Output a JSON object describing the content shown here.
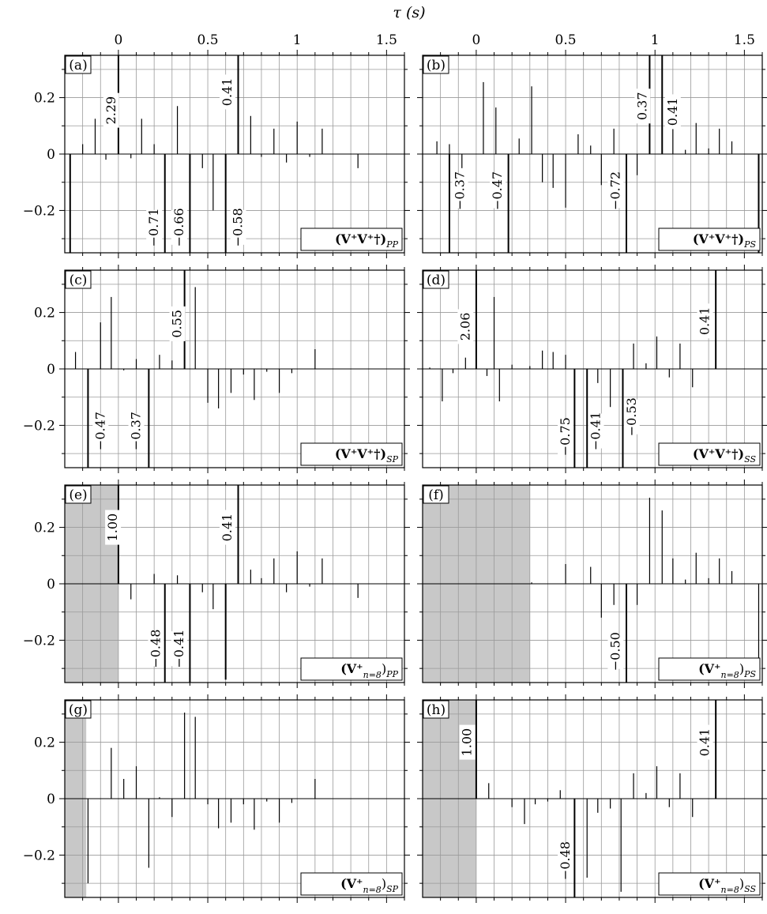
{
  "figure": {
    "xlabel": "τ (s)",
    "x_ticks": [
      0,
      0.5,
      1,
      1.5
    ],
    "x_tick_labels": [
      "0",
      "0.5",
      "1",
      "1.5"
    ],
    "y_ticks": [
      -0.2,
      0,
      0.2
    ],
    "y_tick_labels": [
      "−0.2",
      "0",
      "0.2"
    ]
  },
  "chart_data": [
    {
      "type": "bar",
      "panel": "(a)",
      "legend": "(V⁺V⁺†)PP",
      "xlim": [
        -0.3,
        1.6
      ],
      "ylim": [
        -0.35,
        0.35
      ],
      "grid": true,
      "legend_position": "bottom-right",
      "shade": null,
      "spikes": [
        {
          "x": -0.27,
          "y": -0.35
        },
        {
          "x": -0.2,
          "y": 0.035
        },
        {
          "x": -0.13,
          "y": 0.125
        },
        {
          "x": -0.07,
          "y": -0.02
        },
        {
          "x": 0.0,
          "y": 0.35
        },
        {
          "x": 0.07,
          "y": -0.015
        },
        {
          "x": 0.13,
          "y": 0.125
        },
        {
          "x": 0.2,
          "y": 0.035
        },
        {
          "x": 0.26,
          "y": -0.35
        },
        {
          "x": 0.33,
          "y": 0.17
        },
        {
          "x": 0.4,
          "y": -0.35
        },
        {
          "x": 0.47,
          "y": -0.05
        },
        {
          "x": 0.53,
          "y": -0.2
        },
        {
          "x": 0.6,
          "y": -0.35
        },
        {
          "x": 0.67,
          "y": 0.35
        },
        {
          "x": 0.74,
          "y": 0.135
        },
        {
          "x": 0.8,
          "y": -0.01
        },
        {
          "x": 0.87,
          "y": 0.09
        },
        {
          "x": 0.94,
          "y": -0.03
        },
        {
          "x": 1.0,
          "y": 0.115
        },
        {
          "x": 1.07,
          "y": -0.01
        },
        {
          "x": 1.14,
          "y": 0.09
        },
        {
          "x": 1.34,
          "y": -0.05
        }
      ],
      "labels": [
        {
          "text": "2.29",
          "x": -0.04,
          "y": 0.155,
          "align": "center"
        },
        {
          "text": "0.41",
          "x": 0.61,
          "y": 0.22,
          "align": "center"
        },
        {
          "text": "−0.71",
          "x": 0.2,
          "y": -0.26,
          "align": "center"
        },
        {
          "text": "−0.66",
          "x": 0.34,
          "y": -0.26,
          "align": "center"
        },
        {
          "text": "−0.58",
          "x": 0.67,
          "y": -0.26,
          "align": "center"
        }
      ]
    },
    {
      "type": "bar",
      "panel": "(b)",
      "legend": "(V⁺V⁺†)PS",
      "xlim": [
        -0.3,
        1.6
      ],
      "ylim": [
        -0.35,
        0.35
      ],
      "grid": true,
      "legend_position": "bottom-right",
      "shade": null,
      "spikes": [
        {
          "x": -0.22,
          "y": 0.045
        },
        {
          "x": -0.15,
          "y": 0.035
        },
        {
          "x": -0.15,
          "y": -0.35
        },
        {
          "x": -0.08,
          "y": -0.05
        },
        {
          "x": 0.04,
          "y": 0.255
        },
        {
          "x": 0.11,
          "y": 0.165
        },
        {
          "x": 0.18,
          "y": -0.35
        },
        {
          "x": 0.24,
          "y": 0.055
        },
        {
          "x": 0.31,
          "y": 0.24
        },
        {
          "x": 0.37,
          "y": -0.1
        },
        {
          "x": 0.43,
          "y": -0.12
        },
        {
          "x": 0.5,
          "y": -0.19
        },
        {
          "x": 0.57,
          "y": 0.07
        },
        {
          "x": 0.64,
          "y": 0.03
        },
        {
          "x": 0.7,
          "y": -0.11
        },
        {
          "x": 0.77,
          "y": 0.09
        },
        {
          "x": 0.84,
          "y": -0.35
        },
        {
          "x": 0.9,
          "y": -0.075
        },
        {
          "x": 0.97,
          "y": 0.35
        },
        {
          "x": 1.04,
          "y": 0.35
        },
        {
          "x": 1.1,
          "y": 0.09
        },
        {
          "x": 1.17,
          "y": 0.015
        },
        {
          "x": 1.23,
          "y": 0.11
        },
        {
          "x": 1.3,
          "y": 0.02
        },
        {
          "x": 1.36,
          "y": 0.09
        },
        {
          "x": 1.43,
          "y": 0.045
        },
        {
          "x": 1.58,
          "y": -0.35
        }
      ],
      "labels": [
        {
          "text": "−0.37",
          "x": -0.09,
          "y": -0.13,
          "align": "center"
        },
        {
          "text": "−0.47",
          "x": 0.12,
          "y": -0.13,
          "align": "center"
        },
        {
          "text": "−0.72",
          "x": 0.78,
          "y": -0.13,
          "align": "center"
        },
        {
          "text": "0.37",
          "x": 0.93,
          "y": 0.17,
          "align": "center"
        },
        {
          "text": "0.41",
          "x": 1.1,
          "y": 0.15,
          "align": "center"
        }
      ]
    },
    {
      "type": "bar",
      "panel": "(c)",
      "legend": "(V⁺V⁺†)SP",
      "xlim": [
        -0.3,
        1.6
      ],
      "ylim": [
        -0.35,
        0.35
      ],
      "grid": true,
      "legend_position": "bottom-right",
      "shade": null,
      "spikes": [
        {
          "x": -0.24,
          "y": 0.06
        },
        {
          "x": -0.17,
          "y": -0.35
        },
        {
          "x": -0.1,
          "y": 0.165
        },
        {
          "x": -0.04,
          "y": 0.255
        },
        {
          "x": 0.03,
          "y": -0.005
        },
        {
          "x": 0.1,
          "y": 0.035
        },
        {
          "x": 0.17,
          "y": -0.35
        },
        {
          "x": 0.23,
          "y": 0.05
        },
        {
          "x": 0.3,
          "y": 0.03
        },
        {
          "x": 0.37,
          "y": 0.35
        },
        {
          "x": 0.43,
          "y": 0.29
        },
        {
          "x": 0.5,
          "y": -0.12
        },
        {
          "x": 0.56,
          "y": -0.14
        },
        {
          "x": 0.63,
          "y": -0.085
        },
        {
          "x": 0.7,
          "y": -0.02
        },
        {
          "x": 0.76,
          "y": -0.11
        },
        {
          "x": 0.83,
          "y": -0.01
        },
        {
          "x": 0.9,
          "y": -0.085
        },
        {
          "x": 0.97,
          "y": -0.015
        },
        {
          "x": 1.1,
          "y": 0.07
        }
      ],
      "labels": [
        {
          "text": "−0.47",
          "x": -0.1,
          "y": -0.22,
          "align": "center"
        },
        {
          "text": "−0.37",
          "x": 0.1,
          "y": -0.22,
          "align": "center"
        },
        {
          "text": "0.55",
          "x": 0.33,
          "y": 0.16,
          "align": "center"
        }
      ]
    },
    {
      "type": "bar",
      "panel": "(d)",
      "legend": "(V⁺V⁺†)SS",
      "xlim": [
        -0.3,
        1.6
      ],
      "ylim": [
        -0.35,
        0.35
      ],
      "grid": true,
      "legend_position": "bottom-right",
      "shade": null,
      "spikes": [
        {
          "x": -0.26,
          "y": 0.005
        },
        {
          "x": -0.19,
          "y": -0.115
        },
        {
          "x": -0.13,
          "y": -0.015
        },
        {
          "x": -0.06,
          "y": 0.04
        },
        {
          "x": 0.0,
          "y": 0.35
        },
        {
          "x": 0.06,
          "y": -0.025
        },
        {
          "x": 0.1,
          "y": 0.255
        },
        {
          "x": 0.13,
          "y": -0.115
        },
        {
          "x": 0.2,
          "y": 0.015
        },
        {
          "x": 0.3,
          "y": 0.01
        },
        {
          "x": 0.37,
          "y": 0.065
        },
        {
          "x": 0.43,
          "y": 0.06
        },
        {
          "x": 0.5,
          "y": 0.05
        },
        {
          "x": 0.55,
          "y": -0.35
        },
        {
          "x": 0.62,
          "y": -0.35
        },
        {
          "x": 0.68,
          "y": -0.05
        },
        {
          "x": 0.75,
          "y": -0.135
        },
        {
          "x": 0.82,
          "y": -0.35
        },
        {
          "x": 0.88,
          "y": 0.09
        },
        {
          "x": 0.95,
          "y": 0.02
        },
        {
          "x": 1.01,
          "y": 0.115
        },
        {
          "x": 1.08,
          "y": -0.03
        },
        {
          "x": 1.14,
          "y": 0.09
        },
        {
          "x": 1.21,
          "y": -0.065
        },
        {
          "x": 1.34,
          "y": 0.35
        }
      ],
      "labels": [
        {
          "text": "2.06",
          "x": -0.06,
          "y": 0.15,
          "align": "center"
        },
        {
          "text": "−0.75",
          "x": 0.5,
          "y": -0.24,
          "align": "center"
        },
        {
          "text": "−0.41",
          "x": 0.67,
          "y": -0.22,
          "align": "center"
        },
        {
          "text": "−0.53",
          "x": 0.87,
          "y": -0.17,
          "align": "center"
        },
        {
          "text": "0.41",
          "x": 1.28,
          "y": 0.17,
          "align": "center"
        }
      ]
    },
    {
      "type": "bar",
      "panel": "(e)",
      "legend": "(V⁺n=8)PP",
      "xlim": [
        -0.3,
        1.6
      ],
      "ylim": [
        -0.35,
        0.35
      ],
      "grid": true,
      "legend_position": "bottom-right",
      "shade": [
        -0.3,
        0.0
      ],
      "spikes": [
        {
          "x": 0.0,
          "y": 0.35
        },
        {
          "x": 0.07,
          "y": -0.055
        },
        {
          "x": 0.2,
          "y": 0.035
        },
        {
          "x": 0.26,
          "y": -0.35
        },
        {
          "x": 0.33,
          "y": 0.03
        },
        {
          "x": 0.4,
          "y": -0.35
        },
        {
          "x": 0.47,
          "y": -0.03
        },
        {
          "x": 0.53,
          "y": -0.09
        },
        {
          "x": 0.6,
          "y": -0.34
        },
        {
          "x": 0.67,
          "y": 0.35
        },
        {
          "x": 0.74,
          "y": 0.05
        },
        {
          "x": 0.8,
          "y": 0.02
        },
        {
          "x": 0.87,
          "y": 0.09
        },
        {
          "x": 0.94,
          "y": -0.03
        },
        {
          "x": 1.0,
          "y": 0.115
        },
        {
          "x": 1.07,
          "y": -0.01
        },
        {
          "x": 1.14,
          "y": 0.09
        },
        {
          "x": 1.34,
          "y": -0.05
        }
      ],
      "labels": [
        {
          "text": "1.00",
          "x": -0.03,
          "y": 0.2,
          "align": "center"
        },
        {
          "text": "0.41",
          "x": 0.61,
          "y": 0.2,
          "align": "center"
        },
        {
          "text": "−0.48",
          "x": 0.21,
          "y": -0.23,
          "align": "center"
        },
        {
          "text": "−0.41",
          "x": 0.34,
          "y": -0.23,
          "align": "center"
        }
      ]
    },
    {
      "type": "bar",
      "panel": "(f)",
      "legend": "(V⁺n=8)PS",
      "xlim": [
        -0.3,
        1.6
      ],
      "ylim": [
        -0.35,
        0.35
      ],
      "grid": true,
      "legend_position": "bottom-right",
      "shade": [
        -0.3,
        0.3
      ],
      "spikes": [
        {
          "x": 0.31,
          "y": 0.005
        },
        {
          "x": 0.5,
          "y": 0.07
        },
        {
          "x": 0.64,
          "y": 0.06
        },
        {
          "x": 0.7,
          "y": -0.12
        },
        {
          "x": 0.77,
          "y": -0.075
        },
        {
          "x": 0.84,
          "y": -0.35
        },
        {
          "x": 0.9,
          "y": -0.075
        },
        {
          "x": 0.97,
          "y": 0.305
        },
        {
          "x": 1.04,
          "y": 0.26
        },
        {
          "x": 1.1,
          "y": 0.09
        },
        {
          "x": 1.17,
          "y": 0.015
        },
        {
          "x": 1.23,
          "y": 0.11
        },
        {
          "x": 1.3,
          "y": 0.02
        },
        {
          "x": 1.36,
          "y": 0.09
        },
        {
          "x": 1.43,
          "y": 0.045
        },
        {
          "x": 1.58,
          "y": -0.3
        }
      ],
      "labels": [
        {
          "text": "−0.50",
          "x": 0.78,
          "y": -0.24,
          "align": "center"
        }
      ]
    },
    {
      "type": "bar",
      "panel": "(g)",
      "legend": "(V⁺n=8)SP",
      "xlim": [
        -0.3,
        1.6
      ],
      "ylim": [
        -0.35,
        0.35
      ],
      "grid": true,
      "legend_position": "bottom-right",
      "shade": [
        -0.3,
        -0.18
      ],
      "spikes": [
        {
          "x": -0.17,
          "y": -0.3
        },
        {
          "x": -0.04,
          "y": 0.18
        },
        {
          "x": 0.03,
          "y": 0.07
        },
        {
          "x": 0.1,
          "y": 0.115
        },
        {
          "x": 0.17,
          "y": -0.245
        },
        {
          "x": 0.23,
          "y": 0.005
        },
        {
          "x": 0.3,
          "y": -0.065
        },
        {
          "x": 0.37,
          "y": 0.305
        },
        {
          "x": 0.43,
          "y": 0.29
        },
        {
          "x": 0.5,
          "y": -0.02
        },
        {
          "x": 0.56,
          "y": -0.105
        },
        {
          "x": 0.63,
          "y": -0.085
        },
        {
          "x": 0.7,
          "y": -0.02
        },
        {
          "x": 0.76,
          "y": -0.11
        },
        {
          "x": 0.83,
          "y": -0.01
        },
        {
          "x": 0.9,
          "y": -0.085
        },
        {
          "x": 0.97,
          "y": -0.015
        },
        {
          "x": 1.1,
          "y": 0.07
        }
      ],
      "labels": []
    },
    {
      "type": "bar",
      "panel": "(h)",
      "legend": "(V⁺n=8)SS",
      "xlim": [
        -0.3,
        1.6
      ],
      "ylim": [
        -0.35,
        0.35
      ],
      "grid": true,
      "legend_position": "bottom-right",
      "shade": [
        -0.3,
        0.0
      ],
      "spikes": [
        {
          "x": 0.0,
          "y": 0.35
        },
        {
          "x": 0.07,
          "y": 0.055
        },
        {
          "x": 0.2,
          "y": -0.03
        },
        {
          "x": 0.27,
          "y": -0.09
        },
        {
          "x": 0.33,
          "y": -0.02
        },
        {
          "x": 0.4,
          "y": -0.01
        },
        {
          "x": 0.47,
          "y": 0.03
        },
        {
          "x": 0.55,
          "y": -0.35
        },
        {
          "x": 0.62,
          "y": -0.28
        },
        {
          "x": 0.68,
          "y": -0.05
        },
        {
          "x": 0.75,
          "y": -0.035
        },
        {
          "x": 0.81,
          "y": -0.33
        },
        {
          "x": 0.88,
          "y": 0.09
        },
        {
          "x": 0.95,
          "y": 0.02
        },
        {
          "x": 1.01,
          "y": 0.115
        },
        {
          "x": 1.08,
          "y": -0.03
        },
        {
          "x": 1.14,
          "y": 0.09
        },
        {
          "x": 1.21,
          "y": -0.065
        },
        {
          "x": 1.34,
          "y": 0.35
        }
      ],
      "labels": [
        {
          "text": "1.00",
          "x": -0.05,
          "y": 0.2,
          "align": "center"
        },
        {
          "text": "0.41",
          "x": 1.28,
          "y": 0.2,
          "align": "center"
        },
        {
          "text": "−0.48",
          "x": 0.5,
          "y": -0.22,
          "align": "center"
        }
      ]
    }
  ]
}
